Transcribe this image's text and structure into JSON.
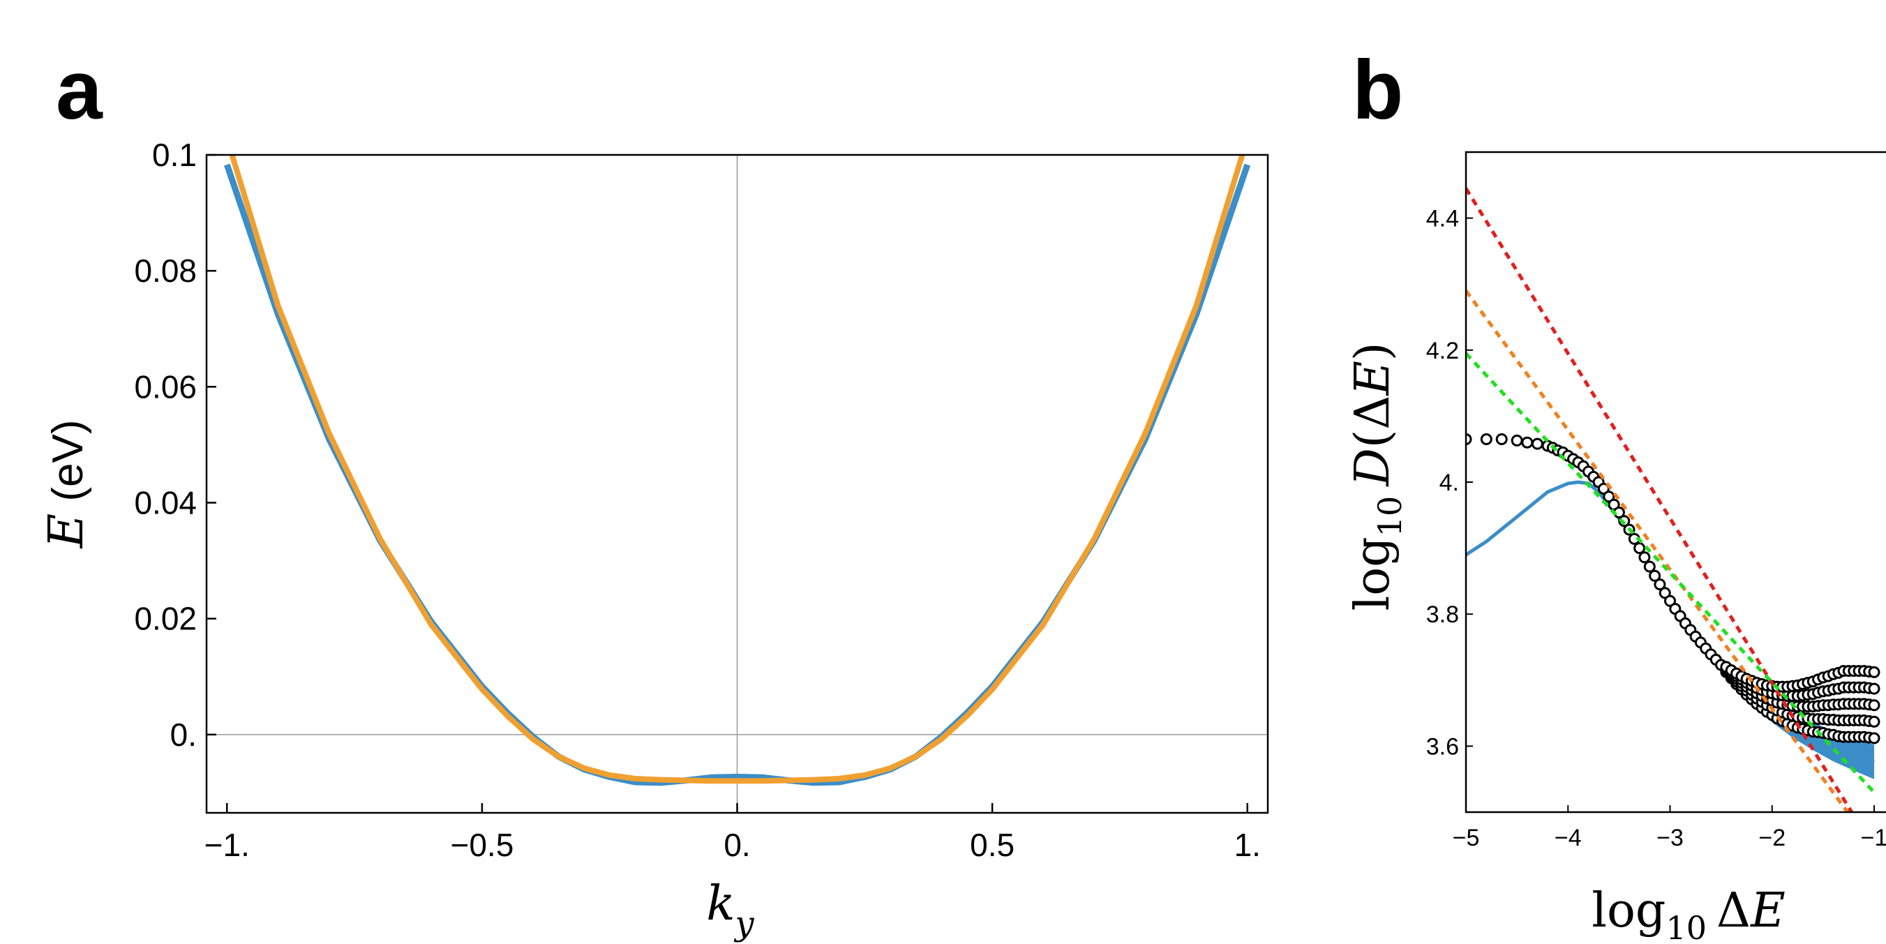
{
  "panels": {
    "a": {
      "label": "a"
    },
    "b": {
      "label": "b"
    }
  },
  "chart_data": [
    {
      "id": "a",
      "type": "line",
      "xlabel": "k_y",
      "ylabel": "E (eV)",
      "xlim": [
        -1.04,
        1.04
      ],
      "ylim": [
        -0.0135,
        0.1
      ],
      "xticks": [
        -1,
        -0.5,
        0,
        0.5,
        1
      ],
      "xtick_labels": [
        "−1.",
        "−0.5",
        "0.",
        "0.5",
        "1."
      ],
      "yticks": [
        0,
        0.02,
        0.04,
        0.06,
        0.08,
        0.1
      ],
      "ytick_labels": [
        "0.",
        "0.02",
        "0.04",
        "0.06",
        "0.08",
        "0.1"
      ],
      "reference_lines": {
        "x": 0,
        "y": 0
      },
      "series": [
        {
          "color": "#3b8ec8",
          "x": [
            -1.0,
            -0.9,
            -0.8,
            -0.7,
            -0.6,
            -0.5,
            -0.45,
            -0.4,
            -0.35,
            -0.3,
            -0.25,
            -0.2,
            -0.15,
            -0.1,
            -0.05,
            0.0,
            0.05,
            0.1,
            0.15,
            0.2,
            0.25,
            0.3,
            0.35,
            0.4,
            0.45,
            0.5,
            0.6,
            0.7,
            0.8,
            0.9,
            1.0
          ],
          "y": [
            0.0983,
            0.0725,
            0.051,
            0.0335,
            0.0195,
            0.0083,
            0.0037,
            -0.0004,
            -0.0038,
            -0.006,
            -0.0073,
            -0.0082,
            -0.0083,
            -0.0079,
            -0.0074,
            -0.0073,
            -0.0074,
            -0.0079,
            -0.0083,
            -0.0082,
            -0.0073,
            -0.006,
            -0.0038,
            -0.0004,
            0.0037,
            0.0083,
            0.0195,
            0.0335,
            0.051,
            0.0725,
            0.0983
          ]
        },
        {
          "color": "#f0a030",
          "x": [
            -0.99,
            -0.9,
            -0.8,
            -0.7,
            -0.6,
            -0.5,
            -0.45,
            -0.4,
            -0.35,
            -0.3,
            -0.25,
            -0.2,
            -0.15,
            -0.1,
            -0.05,
            0.0,
            0.05,
            0.1,
            0.15,
            0.2,
            0.25,
            0.3,
            0.35,
            0.4,
            0.45,
            0.5,
            0.6,
            0.7,
            0.8,
            0.9,
            0.99
          ],
          "y": [
            0.1,
            0.074,
            0.052,
            0.0338,
            0.019,
            0.0078,
            0.0032,
            -0.0008,
            -0.0038,
            -0.0058,
            -0.007,
            -0.0076,
            -0.0078,
            -0.0079,
            -0.008,
            -0.008,
            -0.008,
            -0.0079,
            -0.0078,
            -0.0076,
            -0.007,
            -0.0058,
            -0.0038,
            -0.0008,
            0.0032,
            0.0078,
            0.019,
            0.0338,
            0.052,
            0.074,
            0.1
          ]
        }
      ]
    },
    {
      "id": "b",
      "type": "scatter",
      "xlabel": "log10 ΔE",
      "ylabel": "log10 D(ΔE)",
      "xlim": [
        -5,
        -1
      ],
      "ylim": [
        3.5,
        4.5
      ],
      "xticks": [
        -5,
        -4,
        -3,
        -2,
        -1
      ],
      "xtick_labels": [
        "−5",
        "−4",
        "−3",
        "−2",
        "−1"
      ],
      "yticks": [
        3.6,
        3.8,
        4.0,
        4.2,
        4.4
      ],
      "ytick_labels": [
        "3.6",
        "3.8",
        "4.",
        "4.2",
        "4.4"
      ],
      "points": {
        "marker": "open-circle",
        "color": "#000000",
        "x": [
          -5.0,
          -4.8,
          -4.65,
          -4.5,
          -4.4,
          -4.3,
          -4.2,
          -4.15,
          -4.1,
          -4.05,
          -4.0,
          -3.95,
          -3.9,
          -3.85,
          -3.8,
          -3.75,
          -3.7,
          -3.65,
          -3.6,
          -3.55,
          -3.5,
          -3.45,
          -3.4,
          -3.35,
          -3.3,
          -3.25,
          -3.2,
          -3.15,
          -3.1,
          -3.05,
          -3.0,
          -2.95,
          -2.9,
          -2.85,
          -2.8,
          -2.75,
          -2.7,
          -2.65,
          -2.6,
          -2.55,
          -2.5,
          -2.45,
          -2.4,
          -2.35,
          -2.3,
          -2.25,
          -2.2,
          -2.15,
          -2.1,
          -2.05,
          -2.0,
          -1.95,
          -1.9,
          -1.85,
          -1.8,
          -1.75,
          -1.7,
          -1.65,
          -1.6,
          -1.55,
          -1.5,
          -1.45,
          -1.4,
          -1.35,
          -1.3,
          -1.25,
          -1.2,
          -1.15,
          -1.1,
          -1.05,
          -1.0
        ],
        "y": [
          4.065,
          4.065,
          4.065,
          4.063,
          4.06,
          4.058,
          4.055,
          4.052,
          4.048,
          4.045,
          4.04,
          4.035,
          4.03,
          4.024,
          4.016,
          4.008,
          4.0,
          3.99,
          3.978,
          3.966,
          3.954,
          3.941,
          3.928,
          3.914,
          3.9,
          3.886,
          3.872,
          3.858,
          3.845,
          3.832,
          3.82,
          3.808,
          3.797,
          3.786,
          3.776,
          3.766,
          3.757,
          3.748,
          3.739,
          3.731,
          3.723,
          3.716,
          3.709,
          3.702,
          3.696,
          3.69,
          3.685,
          3.68,
          3.676,
          3.672,
          3.669,
          3.666,
          3.664,
          3.662,
          3.661,
          3.66,
          3.66,
          3.66,
          3.66,
          3.661,
          3.662,
          3.662,
          3.663,
          3.663,
          3.664,
          3.664,
          3.664,
          3.664,
          3.664,
          3.663,
          3.662
        ],
        "spread_y": [
          0,
          0,
          0,
          0,
          0,
          0,
          0,
          0,
          0,
          0,
          0,
          0,
          0,
          0,
          0,
          0,
          0,
          0,
          0,
          0,
          0,
          0,
          0,
          0,
          0,
          0,
          0,
          0,
          0,
          0,
          0,
          0,
          0,
          0,
          0,
          0,
          0,
          0,
          0,
          0,
          0,
          0.004,
          0.006,
          0.008,
          0.01,
          0.012,
          0.014,
          0.016,
          0.018,
          0.02,
          0.022,
          0.024,
          0.026,
          0.028,
          0.03,
          0.032,
          0.034,
          0.036,
          0.038,
          0.04,
          0.042,
          0.044,
          0.046,
          0.048,
          0.05,
          0.05,
          0.05,
          0.05,
          0.05,
          0.05,
          0.05
        ]
      },
      "curve": {
        "color": "#3b8ec8",
        "x": [
          -5.0,
          -4.8,
          -4.6,
          -4.4,
          -4.2,
          -4.0,
          -3.9,
          -3.8,
          -3.7,
          -3.6,
          -3.5,
          -3.4,
          -3.3,
          -3.2,
          -3.1,
          -3.0,
          -2.8,
          -2.6,
          -2.4,
          -2.2,
          -2.0,
          -1.8,
          -1.6,
          -1.4,
          -1.2,
          -1.0
        ],
        "y": [
          3.89,
          3.91,
          3.935,
          3.96,
          3.985,
          3.998,
          4.0,
          3.998,
          3.985,
          3.965,
          3.945,
          3.925,
          3.9,
          3.875,
          3.85,
          3.825,
          3.778,
          3.738,
          3.705,
          3.676,
          3.652,
          3.632,
          3.615,
          3.6,
          3.588,
          3.576
        ],
        "band_halfwidth": [
          0,
          0,
          0,
          0,
          0,
          0,
          0,
          0,
          0,
          0,
          0,
          0,
          0,
          0,
          0,
          0,
          0.003,
          0.006,
          0.01,
          0.013,
          0.016,
          0.019,
          0.021,
          0.023,
          0.025,
          0.026
        ]
      },
      "fit_lines": [
        {
          "color": "#e02020",
          "style": "dashed",
          "x": [
            -5.0,
            -1.0
          ],
          "y": [
            4.445,
            3.445
          ]
        },
        {
          "color": "#f08020",
          "style": "dashed",
          "x": [
            -5.0,
            -1.0
          ],
          "y": [
            4.29,
            3.445
          ]
        },
        {
          "color": "#20e020",
          "style": "dashed",
          "x": [
            -5.0,
            -1.0
          ],
          "y": [
            4.195,
            3.53
          ]
        }
      ]
    }
  ]
}
